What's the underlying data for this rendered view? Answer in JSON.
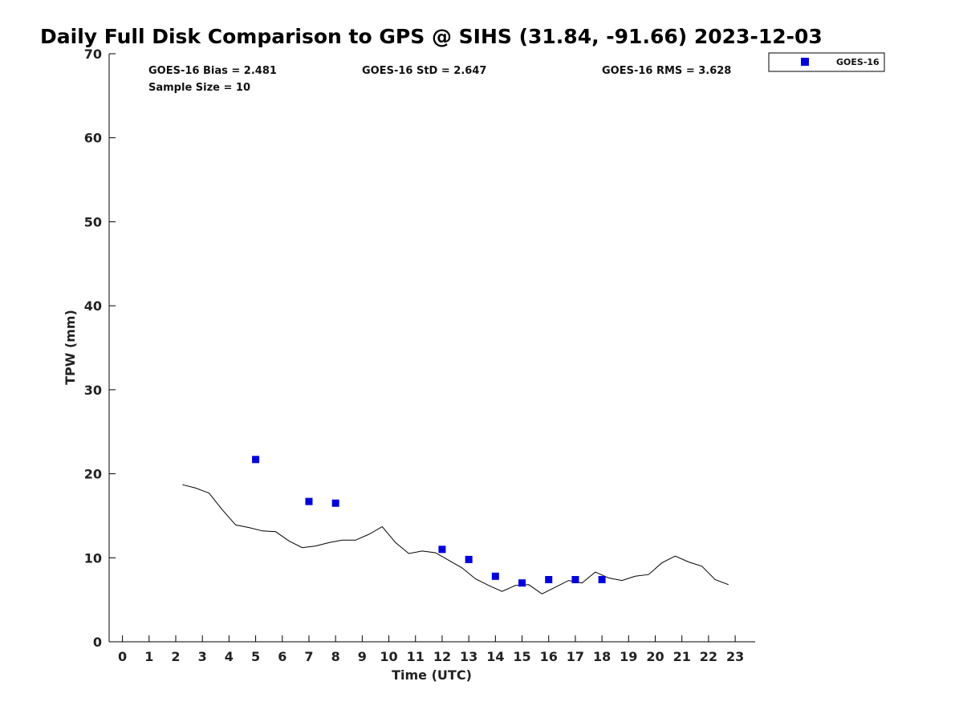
{
  "chart_data": {
    "type": "scatter",
    "title": "Daily Full Disk Comparison to GPS @ SIHS (31.84, -91.66) 2023-12-03",
    "xlabel": "Time (UTC)",
    "ylabel": "TPW (mm)",
    "xlim": [
      -0.5,
      23.75
    ],
    "ylim": [
      0,
      70
    ],
    "xticks": [
      0,
      1,
      2,
      3,
      4,
      5,
      6,
      7,
      8,
      9,
      10,
      11,
      12,
      13,
      14,
      15,
      16,
      17,
      18,
      19,
      20,
      21,
      22,
      23
    ],
    "yticks": [
      0,
      10,
      20,
      30,
      40,
      50,
      60,
      70
    ],
    "grid": false,
    "legend_position": "top-right",
    "stats": {
      "bias": "GOES-16 Bias = 2.481",
      "std": "GOES-16 StD = 2.647",
      "rms": "GOES-16 RMS = 3.628",
      "sample": "Sample Size = 10"
    },
    "series": [
      {
        "name": "GOES-16",
        "kind": "scatter",
        "marker": "square",
        "color": "#0000dd",
        "x": [
          5,
          7,
          8,
          12,
          13,
          14,
          15,
          16,
          17,
          18
        ],
        "y": [
          21.7,
          16.7,
          16.5,
          11.0,
          9.8,
          7.8,
          7.0,
          7.4,
          7.4,
          7.4
        ]
      },
      {
        "kind": "line",
        "color": "#000000",
        "x": [
          2.25,
          2.75,
          3.25,
          3.75,
          4.25,
          4.75,
          5.25,
          5.75,
          6.25,
          6.75,
          7.25,
          7.75,
          8.25,
          8.75,
          9.25,
          9.75,
          10.25,
          10.75,
          11.25,
          11.75,
          12.25,
          12.75,
          13.25,
          13.75,
          14.25,
          14.75,
          15.25,
          15.75,
          16.25,
          16.75,
          17.25,
          17.75,
          18.25,
          18.75,
          19.25,
          19.75,
          20.25,
          20.75,
          21.25,
          21.75,
          22.25,
          22.75
        ],
        "y": [
          18.7,
          18.3,
          17.7,
          15.7,
          13.9,
          13.6,
          13.2,
          13.1,
          12.0,
          11.2,
          11.4,
          11.8,
          12.1,
          12.1,
          12.8,
          13.7,
          11.8,
          10.5,
          10.8,
          10.6,
          9.7,
          8.8,
          7.5,
          6.7,
          6.0,
          6.7,
          6.8,
          5.7,
          6.5,
          7.3,
          7.0,
          8.3,
          7.6,
          7.3,
          7.8,
          8.0,
          9.4,
          10.2,
          9.5,
          9.0,
          7.4,
          6.8
        ]
      }
    ]
  }
}
